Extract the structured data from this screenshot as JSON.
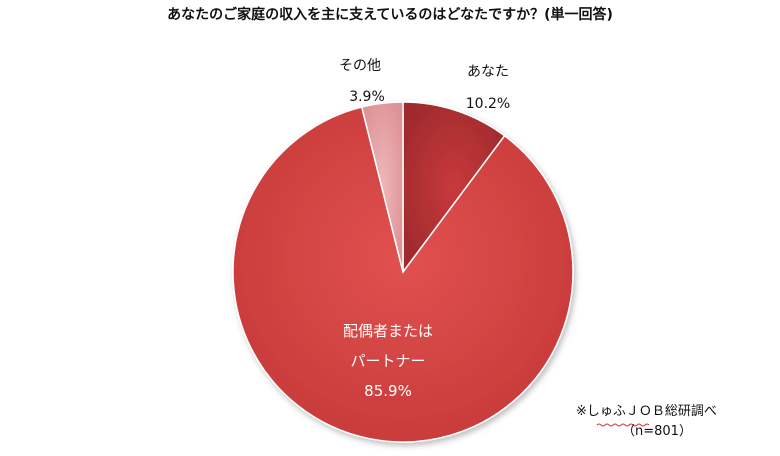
{
  "chart_data": {
    "type": "pie",
    "title": "あなたのご家庭の収入を主に支えているのはどなたですか？(単一回答)",
    "slices": [
      {
        "label": "あなた",
        "value": 10.2,
        "value_label": "10.2%",
        "color": "#b83034",
        "label_position": "outside"
      },
      {
        "label": "配偶者または\nパートナー",
        "value": 85.9,
        "value_label": "85.9%",
        "color": "#d5403f",
        "label_position": "inside"
      },
      {
        "label": "その他",
        "value": 3.9,
        "value_label": "3.9%",
        "color": "#e6a3a6",
        "label_position": "outside"
      }
    ],
    "start_angle_deg": 0,
    "direction": "clockwise",
    "legend": "none"
  },
  "footnote": {
    "source": "※しゅふＪＯＢ総研調べ",
    "sample": "（n=801）"
  }
}
